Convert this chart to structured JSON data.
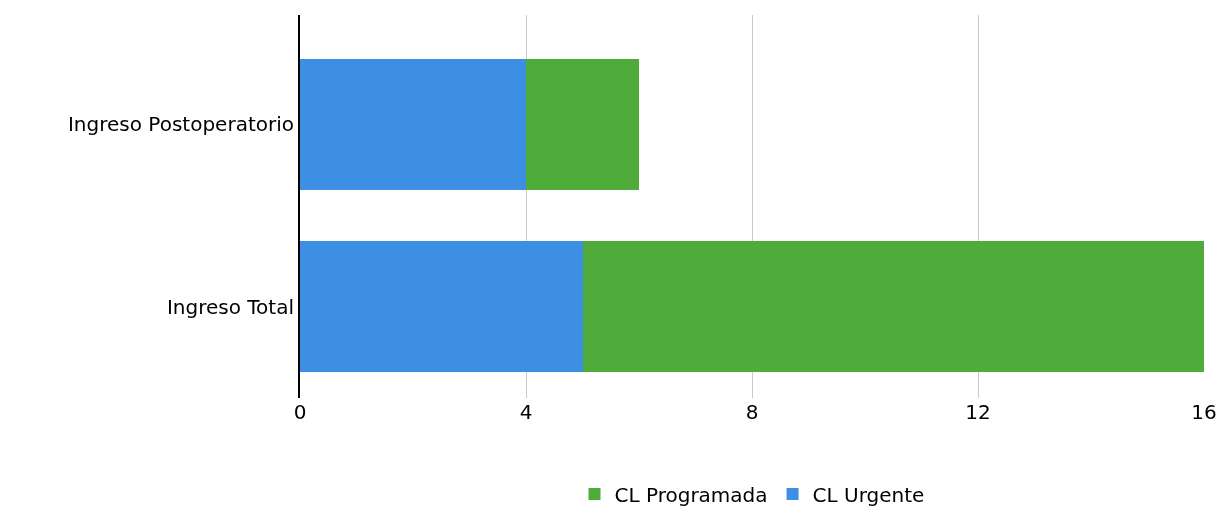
{
  "chart_data": {
    "type": "bar",
    "orientation": "horizontal",
    "stacked": true,
    "categories": [
      "Ingreso Postoperatorio",
      "Ingreso Total"
    ],
    "series": [
      {
        "name": "CL Urgente",
        "color": "#3d8fe3",
        "values": [
          4,
          5
        ]
      },
      {
        "name": "CL Programada",
        "color": "#4fab3a",
        "values": [
          2,
          11
        ]
      }
    ],
    "xlim": [
      0,
      16
    ],
    "xticks": [
      0,
      4,
      8,
      12,
      16
    ],
    "grid": "x",
    "legend": "bottom"
  }
}
